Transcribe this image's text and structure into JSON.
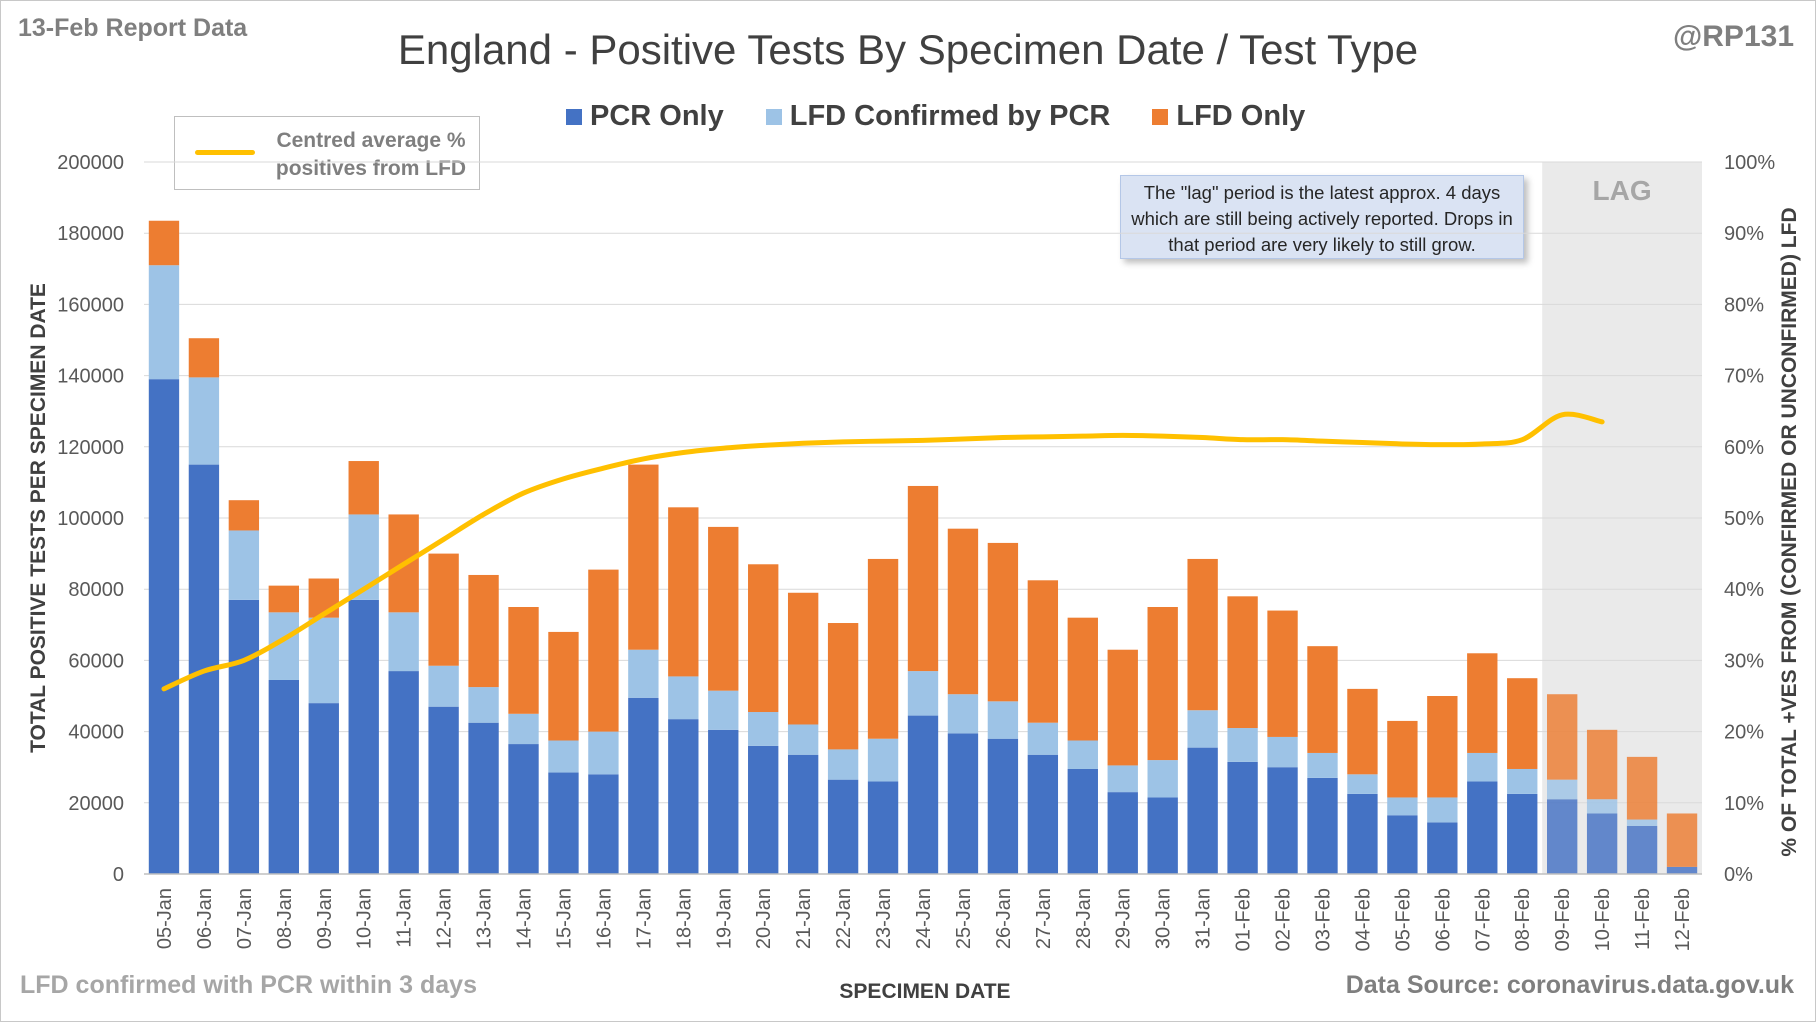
{
  "report_label": "13-Feb Report Data",
  "handle": "@RP131",
  "footer": {
    "left": "LFD confirmed with PCR within 3 days",
    "right": "Data Source: coronavirus.data.gov.uk"
  },
  "lag_note": "The \"lag\" period is the latest approx. 4 days which are still being actively reported.  Drops in that period are very likely to still grow.",
  "chart_data": {
    "type": "bar",
    "stacked": true,
    "title": "England - Positive Tests By Specimen Date / Test Type",
    "xlabel": "SPECIMEN DATE",
    "ylabel": "TOTAL POSITIVE TESTS PER SPECIMEN DATE",
    "y2label": "% OF TOTAL +VES FROM (CONFIRMED OR UNCONFIRMED) LFD",
    "ylim": [
      0,
      200000
    ],
    "y2lim": [
      0,
      100
    ],
    "yticks": [
      "0",
      "20000",
      "40000",
      "60000",
      "80000",
      "100000",
      "120000",
      "140000",
      "160000",
      "180000",
      "200000"
    ],
    "y2ticks": [
      "0%",
      "10%",
      "20%",
      "30%",
      "40%",
      "50%",
      "60%",
      "70%",
      "80%",
      "90%",
      "100%"
    ],
    "grid": true,
    "legend_position": "top",
    "categories": [
      "05-Jan",
      "06-Jan",
      "07-Jan",
      "08-Jan",
      "09-Jan",
      "10-Jan",
      "11-Jan",
      "12-Jan",
      "13-Jan",
      "14-Jan",
      "15-Jan",
      "16-Jan",
      "17-Jan",
      "18-Jan",
      "19-Jan",
      "20-Jan",
      "21-Jan",
      "22-Jan",
      "23-Jan",
      "24-Jan",
      "25-Jan",
      "26-Jan",
      "27-Jan",
      "28-Jan",
      "29-Jan",
      "30-Jan",
      "31-Jan",
      "01-Feb",
      "02-Feb",
      "03-Feb",
      "04-Feb",
      "05-Feb",
      "06-Feb",
      "07-Feb",
      "08-Feb",
      "09-Feb",
      "10-Feb",
      "11-Feb",
      "12-Feb"
    ],
    "series": [
      {
        "name": "PCR Only",
        "color": "#4472c4",
        "values": [
          139000,
          115000,
          77000,
          54500,
          48000,
          77000,
          57000,
          47000,
          42500,
          36500,
          28500,
          28000,
          49500,
          43500,
          40500,
          36000,
          33500,
          26500,
          26000,
          44500,
          39500,
          38000,
          33500,
          29500,
          23000,
          21500,
          35500,
          31500,
          30000,
          27000,
          22500,
          16500,
          14500,
          26000,
          22500,
          21000,
          17000,
          13500,
          2000
        ]
      },
      {
        "name": "LFD Confirmed by PCR",
        "color": "#9dc3e6",
        "values": [
          32000,
          24500,
          19500,
          19000,
          24000,
          24000,
          16500,
          11500,
          10000,
          8500,
          9000,
          12000,
          13500,
          12000,
          11000,
          9500,
          8500,
          8500,
          12000,
          12500,
          11000,
          10500,
          9000,
          8000,
          7500,
          10500,
          10500,
          9500,
          8500,
          7000,
          5500,
          5000,
          7000,
          8000,
          7000,
          5500,
          4000,
          1800,
          0
        ]
      },
      {
        "name": "LFD Only",
        "color": "#ed7d31",
        "values": [
          12500,
          11000,
          8500,
          7500,
          11000,
          15000,
          27500,
          31500,
          31500,
          30000,
          30500,
          45500,
          52000,
          47500,
          46000,
          41500,
          37000,
          35500,
          50500,
          52000,
          46500,
          44500,
          40000,
          34500,
          32500,
          43000,
          42500,
          37000,
          35500,
          30000,
          24000,
          21500,
          28500,
          28000,
          25500,
          24000,
          19500,
          17600,
          15000
        ]
      }
    ],
    "line_series": {
      "name": "Centred average % positives from LFD",
      "color": "#ffc000",
      "values": [
        26,
        28.5,
        30,
        33,
        36.5,
        40,
        43.5,
        47,
        50.5,
        53.5,
        55.5,
        57,
        58.3,
        59.2,
        59.8,
        60.2,
        60.5,
        60.7,
        60.8,
        60.9,
        61.1,
        61.3,
        61.4,
        61.5,
        61.6,
        61.5,
        61.3,
        61,
        61,
        60.8,
        60.6,
        60.4,
        60.3,
        60.4,
        61,
        64.5,
        63.5,
        null,
        null
      ]
    },
    "lag_region": {
      "start": "09-Feb",
      "end": "12-Feb",
      "label": "LAG"
    }
  }
}
